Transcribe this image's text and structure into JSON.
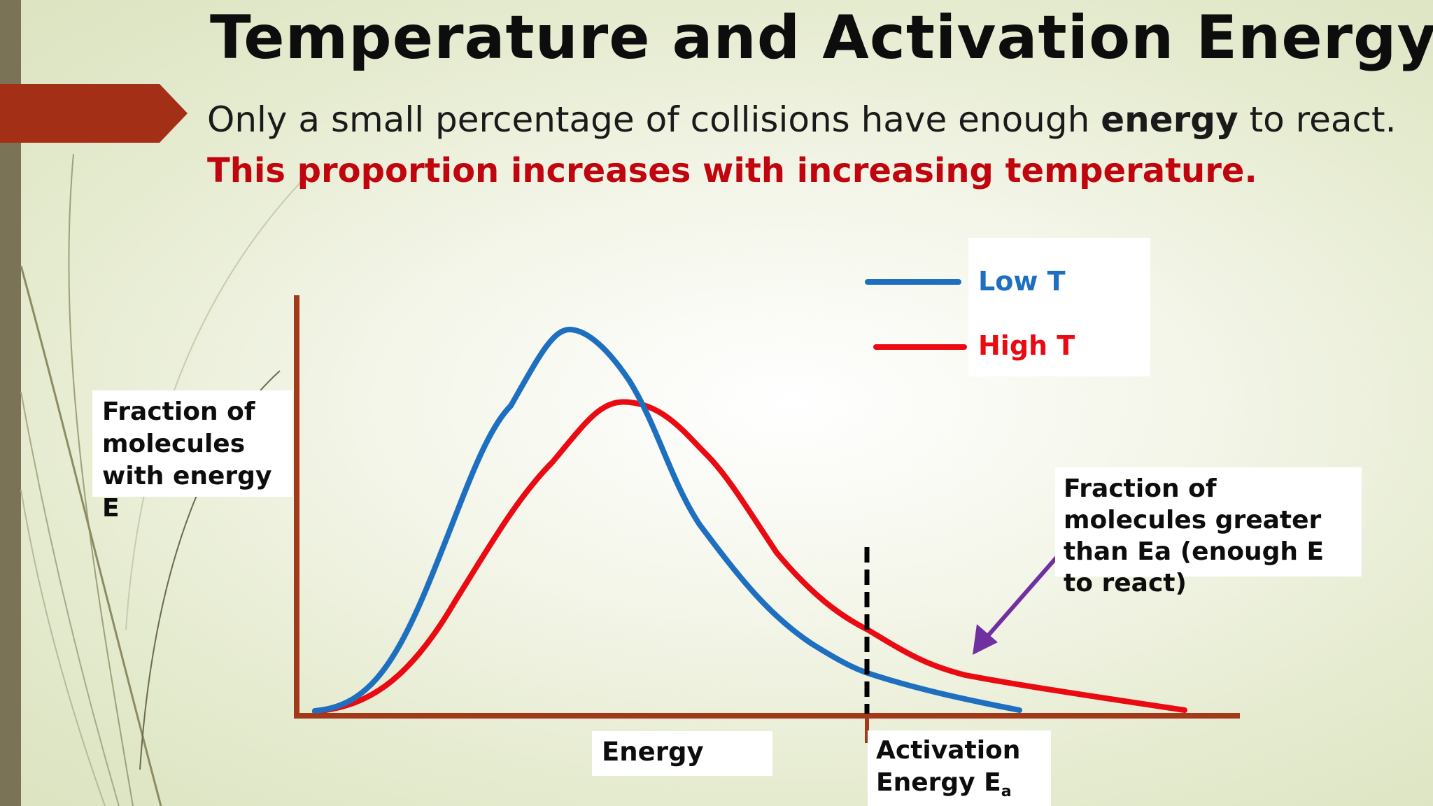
{
  "slide": {
    "title": "Temperature and Activation Energy",
    "subtitle_pre": "Only a small percentage of collisions have enough ",
    "subtitle_bold": "energy",
    "subtitle_post": " to react.",
    "highlight": "This proportion increases with increasing temperature."
  },
  "diagram": {
    "y_label": "Fraction of molecules with energy E",
    "x_label": "Energy",
    "ea_label": "Activation Energy E",
    "ea_subscript": "a",
    "annotation": "Fraction of molecules greater than Ea (enough E to react)",
    "legend": [
      {
        "label": "Low T",
        "color": "#1f6fc1"
      },
      {
        "label": "High T",
        "color": "#ea0a12"
      }
    ],
    "colors": {
      "axis": "#a2391a",
      "ea_line": "#000000",
      "arrow": "#7030a0",
      "accent_tab": "#a32f16"
    }
  }
}
